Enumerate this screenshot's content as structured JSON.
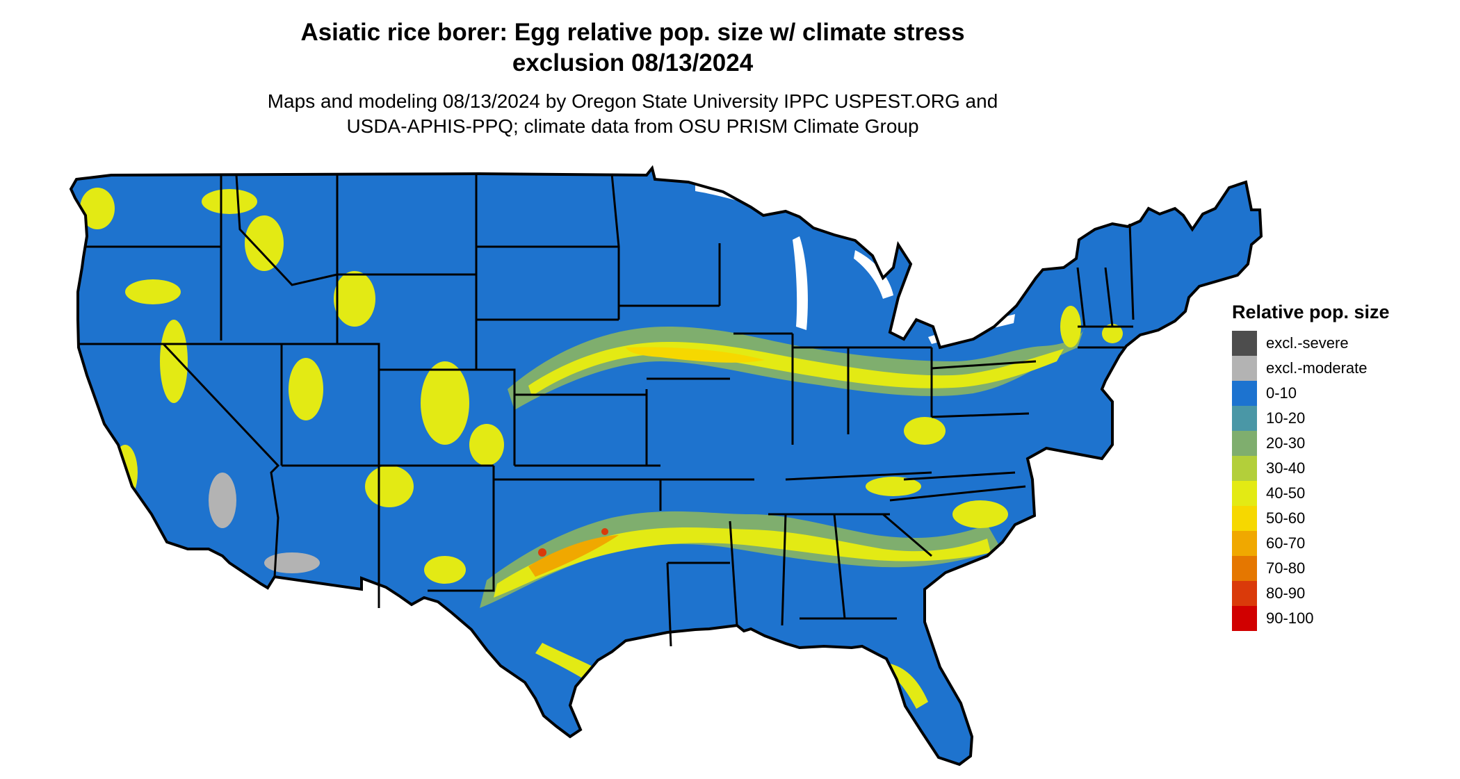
{
  "header": {
    "title_line1": "Asiatic rice borer: Egg relative pop. size w/ climate stress",
    "title_line2": "exclusion 08/13/2024",
    "subtitle_line1": "Maps and modeling 08/13/2024 by Oregon State University IPPC USPEST.ORG and",
    "subtitle_line2": "USDA-APHIS-PPQ; climate data from OSU PRISM Climate Group"
  },
  "map": {
    "region": "contiguous United States",
    "base_color": "#1E73CE",
    "state_border_color": "#000000",
    "band_colors": {
      "low_mid": "#7FAE6E",
      "mid": "#E3EA14",
      "high": "#F6D800",
      "peak": "#F0A800",
      "top": "#DA3A0A"
    },
    "exclusion_color": "#B3B3B3"
  },
  "legend": {
    "title": "Relative pop. size",
    "items": [
      {
        "label": "excl.-severe",
        "color": "#4D4D4D"
      },
      {
        "label": "excl.-moderate",
        "color": "#B3B3B3"
      },
      {
        "label": "0-10",
        "color": "#1C73D0"
      },
      {
        "label": "10-20",
        "color": "#4A97A6"
      },
      {
        "label": "20-30",
        "color": "#7FAE6E"
      },
      {
        "label": "30-40",
        "color": "#B3CF3A"
      },
      {
        "label": "40-50",
        "color": "#E3EA14"
      },
      {
        "label": "50-60",
        "color": "#F6D800"
      },
      {
        "label": "60-70",
        "color": "#F0A800"
      },
      {
        "label": "70-80",
        "color": "#E57700"
      },
      {
        "label": "80-90",
        "color": "#DA3A0A"
      },
      {
        "label": "90-100",
        "color": "#D10000"
      }
    ]
  }
}
